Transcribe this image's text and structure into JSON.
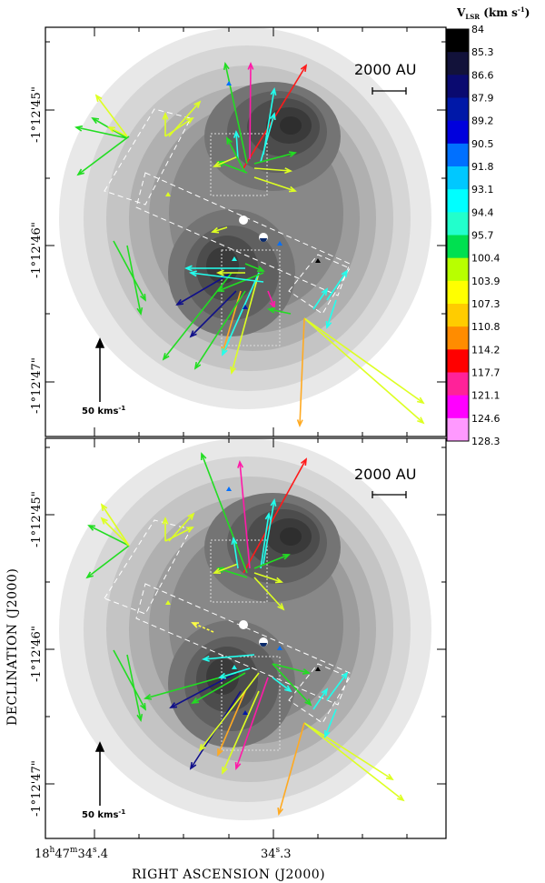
{
  "panels": [
    {
      "name": "top",
      "scale_label": "2000 AU",
      "velocity_label": "50  kms",
      "velocity_sup": "-1"
    },
    {
      "name": "bottom",
      "scale_label": "2000 AU",
      "velocity_label": "50  kms",
      "velocity_sup": "-1"
    }
  ],
  "dec_ticks": [
    "-1°12'45\"",
    "-1°12'46\"",
    "-1°12'47\""
  ],
  "ra_ticks": {
    "left": "18h47m34s.4",
    "left_parts": [
      "18",
      "h",
      "47",
      "m",
      "34",
      "s",
      ".4"
    ],
    "mid": "34s.3",
    "mid_parts": [
      "34",
      "s",
      ".3"
    ]
  },
  "x_axis_title": "RIGHT ASCENSION (J2000)",
  "y_axis_title": "DECLINATION (J2000)",
  "colorbar": {
    "title_main": "V",
    "title_sub": "LSR",
    "title_unit": " (km s",
    "title_sup": "-1",
    "title_end": ")",
    "levels": [
      "84",
      "85.3",
      "86.6",
      "87.9",
      "89.2",
      "90.5",
      "91.8",
      "93.1",
      "94.4",
      "95.7",
      "100.4",
      "103.9",
      "107.3",
      "110.8",
      "114.2",
      "117.7",
      "121.1",
      "124.6",
      "128.3"
    ],
    "colors": [
      "#000000",
      "#12123a",
      "#0a0a70",
      "#0018a8",
      "#0000dd",
      "#0070ff",
      "#00c8ff",
      "#00ffff",
      "#22ffcc",
      "#00e050",
      "#b8ff00",
      "#ffff00",
      "#ffcc00",
      "#ff8c00",
      "#ff0000",
      "#ff2299",
      "#ff00ff",
      "#ff99ff"
    ]
  },
  "colors": {
    "contour_fill_darkest": "#2e2e2e",
    "contour_fill_lightest": "#e8e8e8",
    "box_dashed": "#ffffff"
  }
}
